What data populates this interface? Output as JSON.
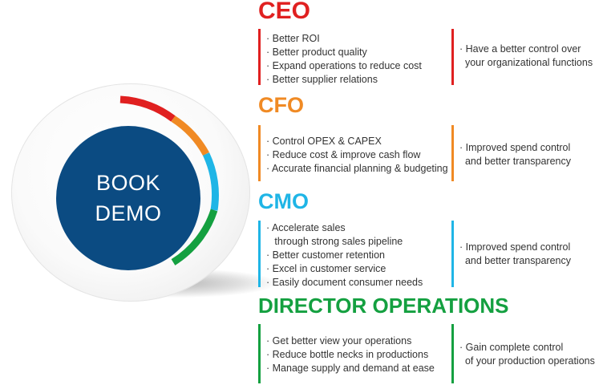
{
  "cta": {
    "line1": "BOOK",
    "line2": "DEMO"
  },
  "colors": {
    "red": "#e02020",
    "orange": "#f08a24",
    "blue": "#1fb5e6",
    "green": "#14a040",
    "navy": "#0b4b82"
  },
  "roles": [
    {
      "title": "CEO",
      "color": "#e02020",
      "points": [
        "Better ROI",
        "Better product quality",
        "Expand operations to reduce cost",
        "Better supplier relations"
      ],
      "benefit": [
        "Have a better control over",
        "your organizational functions"
      ]
    },
    {
      "title": "CFO",
      "color": "#f08a24",
      "points": [
        "Control OPEX & CAPEX",
        "Reduce cost & improve cash flow",
        "Accurate financial planning & budgeting"
      ],
      "benefit": [
        "Improved spend control",
        "and better transparency"
      ]
    },
    {
      "title": "CMO",
      "color": "#1fb5e6",
      "points": [
        "Accelerate sales",
        " through strong sales pipeline",
        "Better customer retention",
        "Excel in customer service",
        "Easily document consumer needs"
      ],
      "benefit": [
        "Improved spend control",
        "and better transparency"
      ]
    },
    {
      "title": "DIRECTOR OPERATIONS",
      "color": "#14a040",
      "points": [
        "Get better view your operations",
        "Reduce bottle necks in productions",
        "Manage supply and demand at ease"
      ],
      "benefit": [
        "Gain complete control",
        "of your production operations"
      ]
    }
  ]
}
